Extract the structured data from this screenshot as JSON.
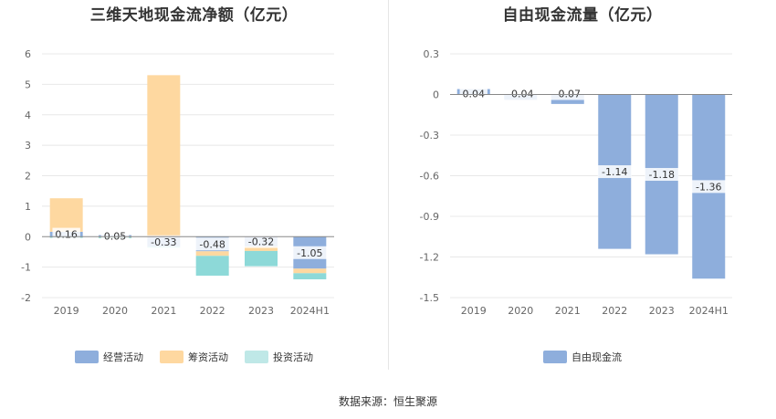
{
  "source": "数据来源：恒生聚源",
  "chart_data": [
    {
      "type": "bar",
      "title": "三维天地现金流净额（亿元）",
      "categories": [
        "2019",
        "2020",
        "2021",
        "2022",
        "2023",
        "2024H1"
      ],
      "ylim": [
        -2,
        6
      ],
      "yticks": [
        6,
        5,
        4,
        3,
        2,
        1,
        0,
        -1,
        -2
      ],
      "grid": true,
      "legend_position": "bottom",
      "series": [
        {
          "name": "经营活动",
          "color": "#8eaedc",
          "values": [
            0.16,
            0.05,
            -0.33,
            -0.48,
            -0.32,
            -1.05
          ]
        },
        {
          "name": "筹资活动",
          "color": "#fed8a0",
          "values": [
            1.1,
            -0.02,
            5.3,
            -0.15,
            -0.15,
            -0.15
          ]
        },
        {
          "name": "投资活动",
          "color": "#8dd9d8",
          "values": [
            -0.04,
            -0.03,
            -0.03,
            -0.65,
            -0.5,
            -0.2
          ]
        }
      ],
      "data_labels": [
        "0.16",
        "0.05",
        "-0.33",
        "-0.48",
        "-0.32",
        "-1.05"
      ]
    },
    {
      "type": "bar",
      "title": "自由现金流量（亿元）",
      "categories": [
        "2019",
        "2020",
        "2021",
        "2022",
        "2023",
        "2024H1"
      ],
      "ylim": [
        -1.5,
        0.3
      ],
      "yticks": [
        "0.3",
        "0",
        "-0.3",
        "-0.6",
        "-0.9",
        "-1.2",
        "-1.5"
      ],
      "grid": true,
      "legend_position": "bottom",
      "series": [
        {
          "name": "自由现金流",
          "color": "#8eaedc",
          "values": [
            0.04,
            -0.04,
            -0.07,
            -1.14,
            -1.18,
            -1.36
          ]
        }
      ],
      "data_labels": [
        "0.04",
        "-0.04",
        "-0.07",
        "-1.14",
        "-1.18",
        "-1.36"
      ]
    }
  ]
}
